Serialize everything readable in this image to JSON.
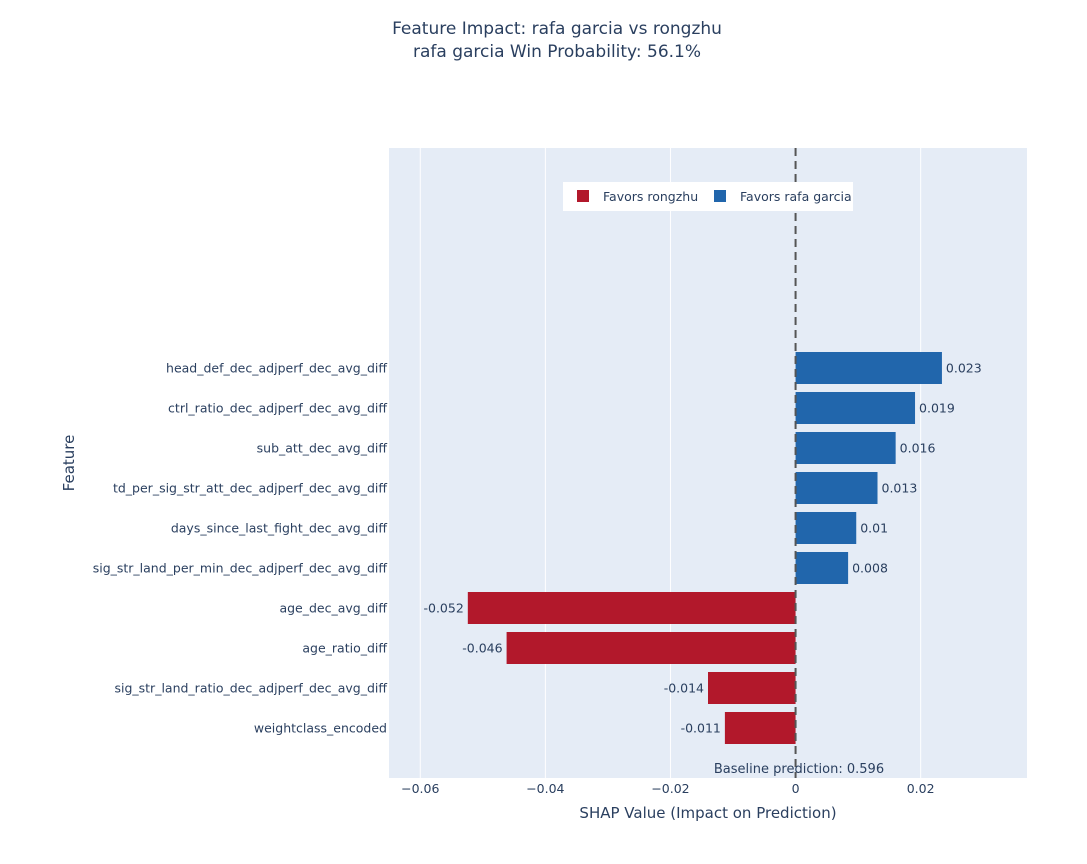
{
  "chart_data": {
    "type": "bar",
    "orientation": "horizontal",
    "title": "Feature Impact: rafa garcia vs rongzhu",
    "subtitle": "rafa garcia Win Probability: 56.1%",
    "xlabel": "SHAP Value (Impact on Prediction)",
    "ylabel": "Feature",
    "xlim": [
      -0.065,
      0.037
    ],
    "x_ticks": [
      -0.06,
      -0.04,
      -0.02,
      0,
      0.02
    ],
    "x_tick_labels": [
      "−0.06",
      "−0.04",
      "−0.02",
      "0",
      "0.02"
    ],
    "grid": true,
    "zero_line": "dashed",
    "legend": {
      "placement": "top-center",
      "entries": [
        {
          "name": "Favors rongzhu",
          "color": "#b2182b"
        },
        {
          "name": "Favors rafa garcia",
          "color": "#2166ac"
        }
      ]
    },
    "categories": [
      "head_def_dec_adjperf_dec_avg_diff",
      "ctrl_ratio_dec_adjperf_dec_avg_diff",
      "sub_att_dec_avg_diff",
      "td_per_sig_str_att_dec_adjperf_dec_avg_diff",
      "days_since_last_fight_dec_avg_diff",
      "sig_str_land_per_min_dec_adjperf_dec_avg_diff",
      "age_dec_avg_diff",
      "age_ratio_diff",
      "sig_str_land_ratio_dec_adjperf_dec_avg_diff",
      "weightclass_encoded"
    ],
    "values": [
      0.0234,
      0.0191,
      0.016,
      0.0131,
      0.0097,
      0.0084,
      -0.0524,
      -0.0462,
      -0.014,
      -0.0113
    ],
    "value_labels": [
      "0.023",
      "0.019",
      "0.016",
      "0.013",
      "0.01",
      "0.008",
      "-0.052",
      "-0.046",
      "-0.014",
      "-0.011"
    ],
    "colors": {
      "positive": "#2166ac",
      "negative": "#b2182b",
      "plot_bg": "#e5ecf6",
      "grid": "#ffffff",
      "text": "#2a3f5f"
    },
    "annotation": "Baseline prediction: 0.596"
  }
}
